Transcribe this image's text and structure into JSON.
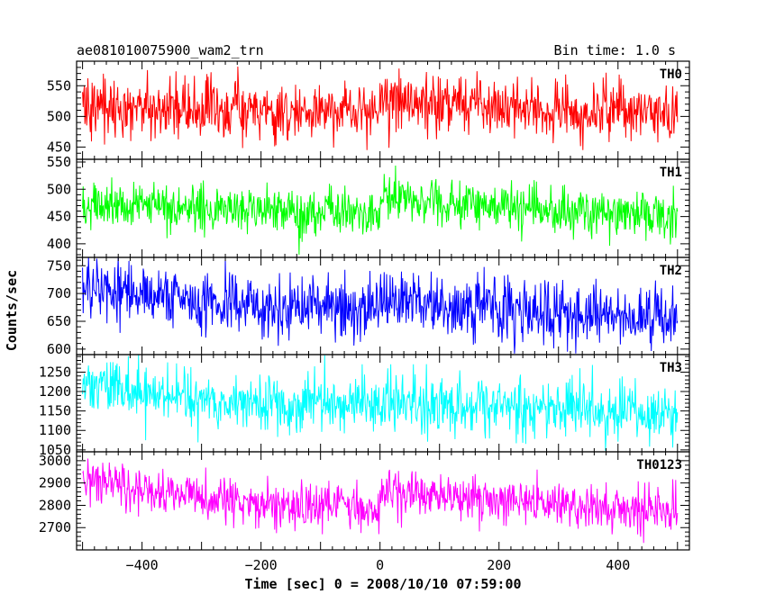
{
  "header": {
    "left_title": "ae081010075900_wam2_trn",
    "right_title": "Bin time: 1.0 s"
  },
  "chart_data": {
    "type": "line",
    "xlabel": "Time [sec] 0 = 2008/10/10 07:59:00",
    "ylabel": "Counts/sec",
    "xlim": [
      -510,
      520
    ],
    "xticks": [
      -400,
      -200,
      0,
      200,
      400
    ],
    "x_tick_labels": [
      "−400",
      "−200",
      "0",
      "200",
      "400"
    ],
    "x_range_data": [
      -500,
      500
    ],
    "bin_time_s": 1.0,
    "panels": [
      {
        "label": "TH0",
        "color": "#ff0000",
        "ylim": [
          430,
          590
        ],
        "yticks": [
          450,
          500,
          550
        ],
        "y_tick_labels": [
          "450",
          "500",
          "550"
        ],
        "mean_profile": {
          "x": [
            -500,
            -300,
            -1,
            0,
            200,
            500
          ],
          "y": [
            522,
            510,
            502,
            528,
            515,
            507
          ]
        },
        "scatter": 25,
        "clip": [
          445,
          590
        ]
      },
      {
        "label": "TH1",
        "color": "#00ff00",
        "ylim": [
          375,
          555
        ],
        "yticks": [
          400,
          450,
          500,
          550
        ],
        "y_tick_labels": [
          "400",
          "450",
          "500",
          "550"
        ],
        "mean_profile": {
          "x": [
            -500,
            -300,
            -1,
            0,
            200,
            500
          ],
          "y": [
            474,
            465,
            455,
            485,
            465,
            452
          ]
        },
        "scatter": 22,
        "clip": [
          380,
          555
        ]
      },
      {
        "label": "TH2",
        "color": "#0000ff",
        "ylim": [
          590,
          765
        ],
        "yticks": [
          600,
          650,
          700,
          750
        ],
        "y_tick_labels": [
          "600",
          "650",
          "700",
          "750"
        ],
        "mean_profile": {
          "x": [
            -500,
            -400,
            -200,
            0,
            200,
            500
          ],
          "y": [
            710,
            695,
            675,
            680,
            668,
            655
          ]
        },
        "scatter": 28,
        "clip": [
          592,
          765
        ]
      },
      {
        "label": "TH3",
        "color": "#00ffff",
        "ylim": [
          1045,
          1295
        ],
        "yticks": [
          1050,
          1100,
          1150,
          1200,
          1250
        ],
        "y_tick_labels": [
          "1050",
          "1100",
          "1150",
          "1200",
          "1250"
        ],
        "mean_profile": {
          "x": [
            -500,
            -400,
            -200,
            0,
            200,
            500
          ],
          "y": [
            1225,
            1195,
            1165,
            1165,
            1160,
            1145
          ]
        },
        "scatter": 38,
        "clip": [
          1048,
          1295
        ]
      },
      {
        "label": "TH0123",
        "color": "#ff00ff",
        "ylim": [
          2600,
          3040
        ],
        "yticks": [
          2700,
          2800,
          2900,
          3000
        ],
        "y_tick_labels": [
          "2700",
          "2800",
          "2900",
          "3000"
        ],
        "mean_profile": {
          "x": [
            -500,
            -400,
            -200,
            -1,
            0,
            200,
            500
          ],
          "y": [
            2935,
            2860,
            2810,
            2790,
            2860,
            2820,
            2770
          ]
        },
        "scatter": 52,
        "clip": [
          2605,
          3040
        ]
      }
    ]
  }
}
